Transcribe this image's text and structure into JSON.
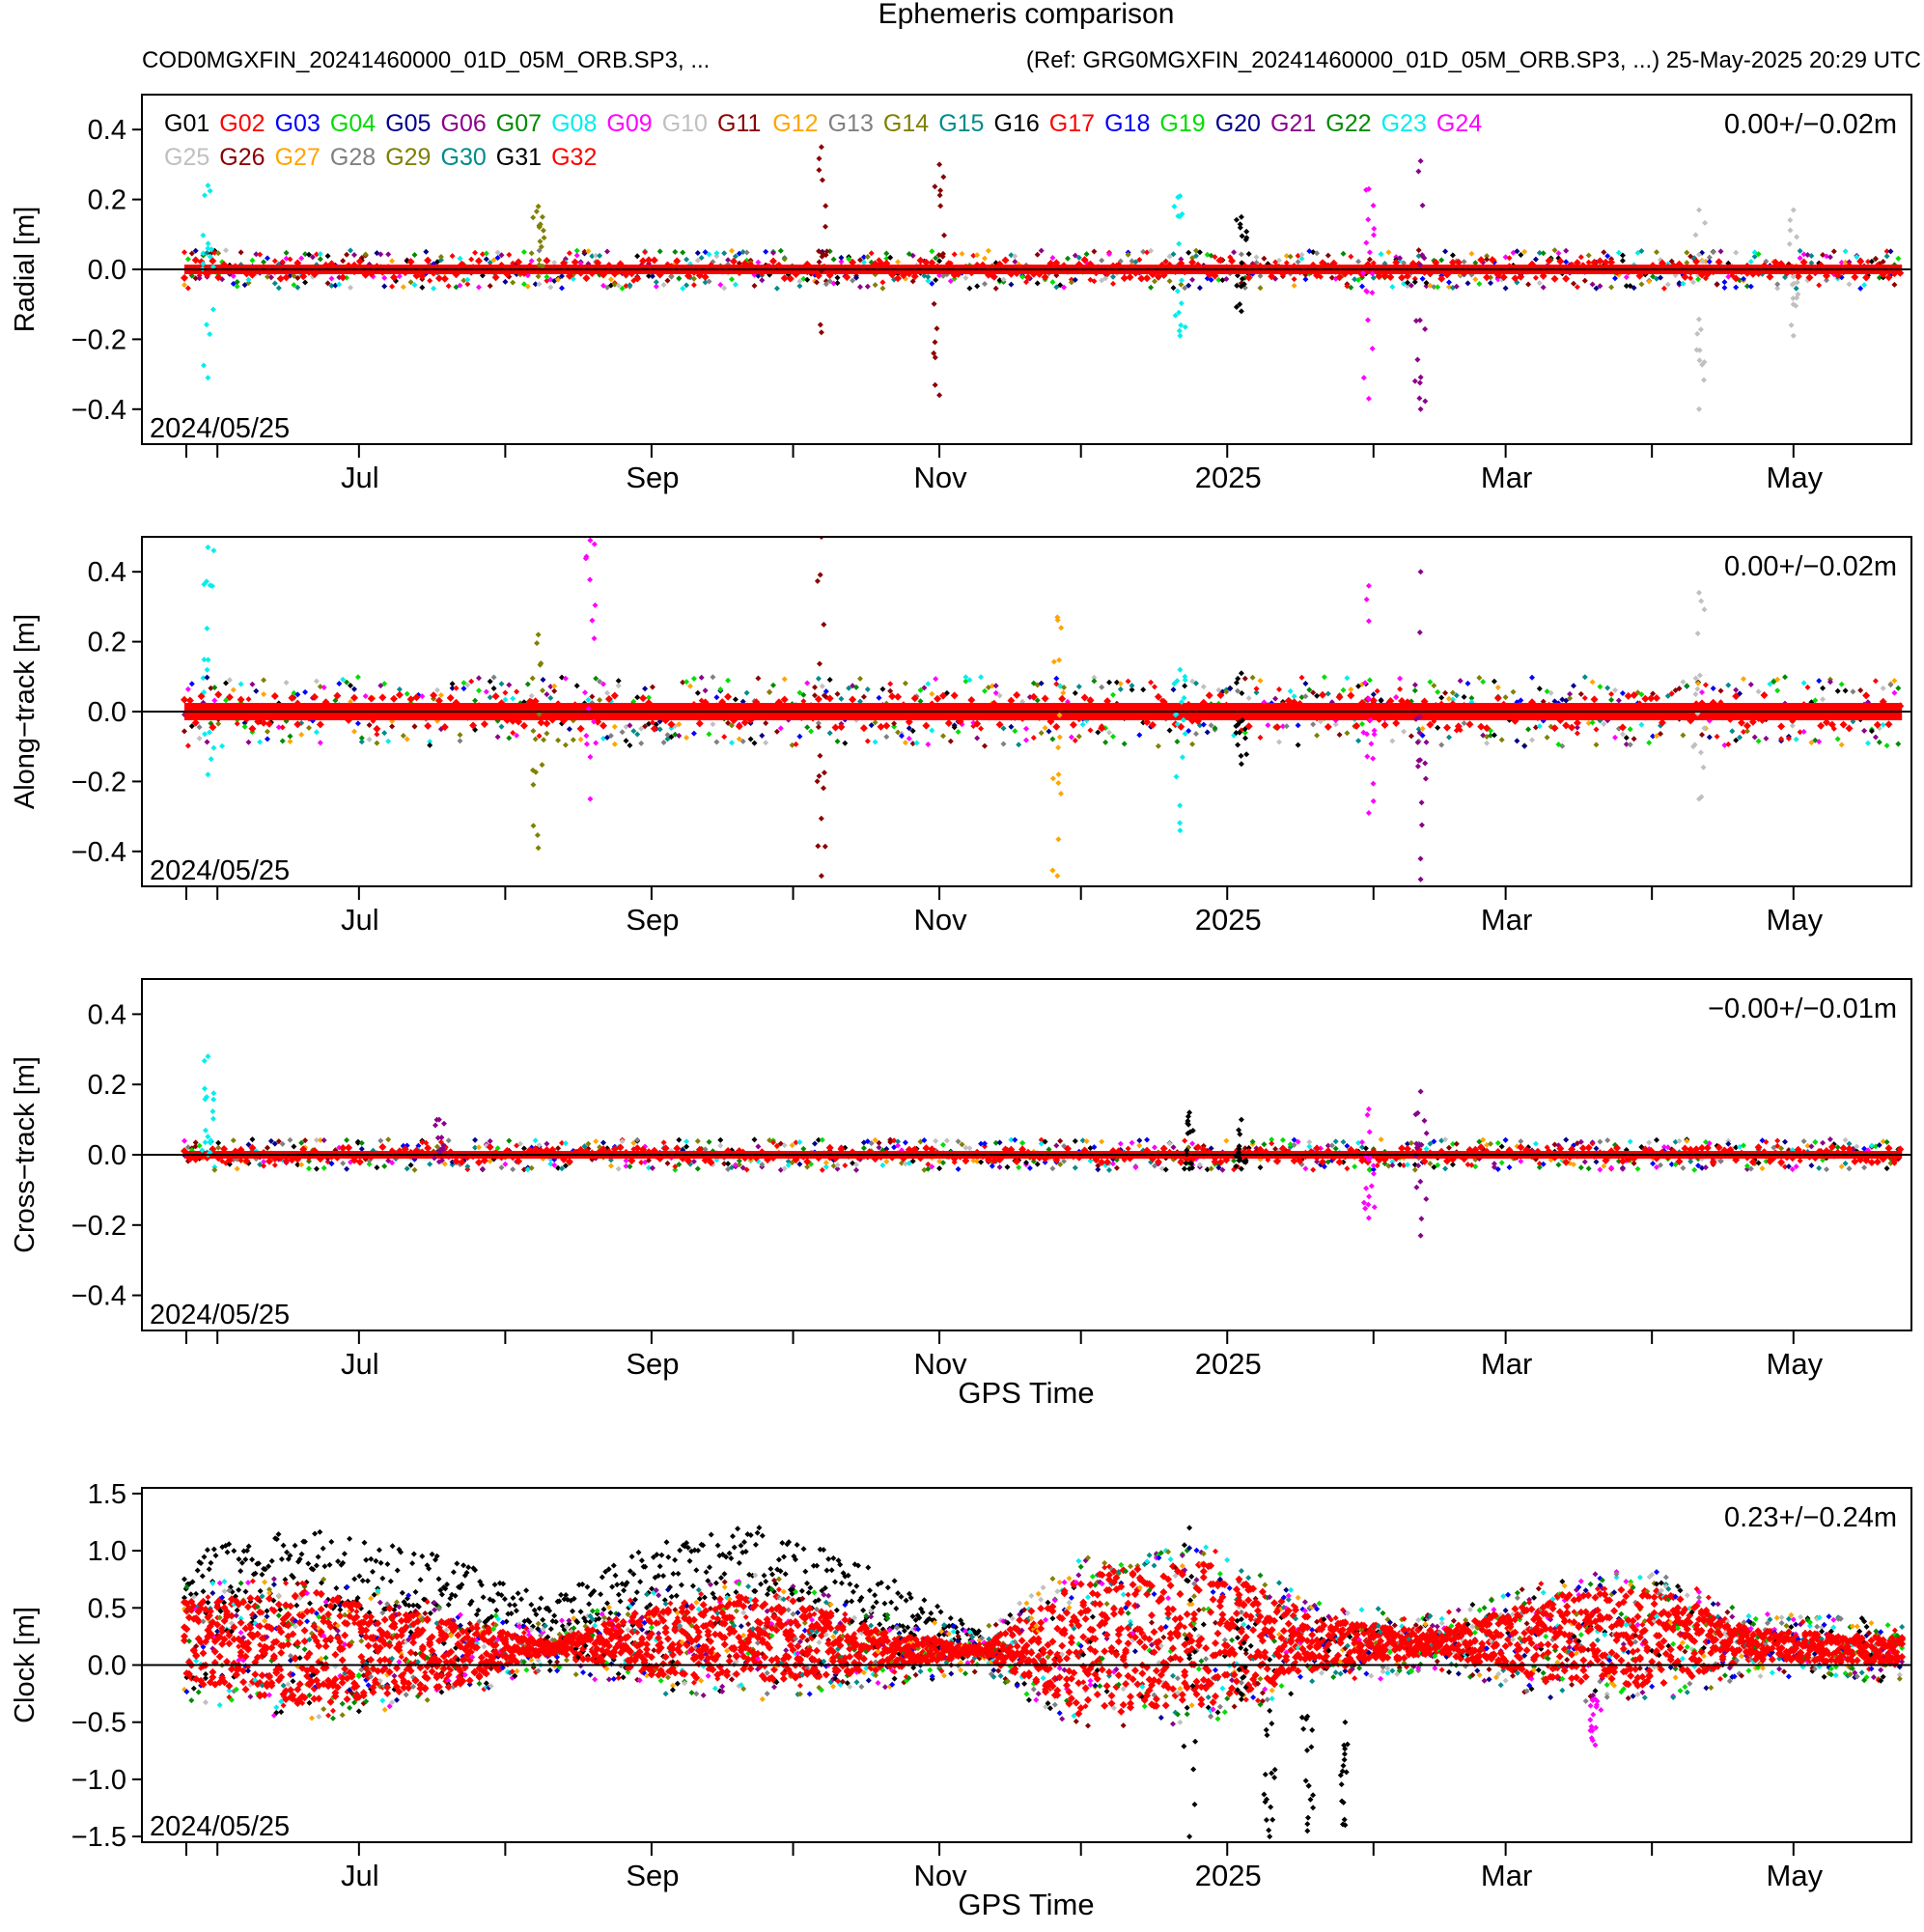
{
  "title": "Ephemeris comparison",
  "subtitle_left": "COD0MGXFIN_20241460000_01D_05M_ORB.SP3, ...",
  "subtitle_right": "(Ref: GRG0MGXFIN_20241460000_01D_05M_ORB.SP3, ...) 25-May-2025 20:29 UTC",
  "xlabel": "GPS Time",
  "month_labels": [
    "Jul",
    "Sep",
    "Nov",
    "2025",
    "Mar",
    "May"
  ],
  "legend": [
    {
      "name": "G01",
      "color": "#000000"
    },
    {
      "name": "G02",
      "color": "#ff0000"
    },
    {
      "name": "G03",
      "color": "#0000ff"
    },
    {
      "name": "G04",
      "color": "#00dd00"
    },
    {
      "name": "G05",
      "color": "#00008b"
    },
    {
      "name": "G06",
      "color": "#8b008b"
    },
    {
      "name": "G07",
      "color": "#008b00"
    },
    {
      "name": "G08",
      "color": "#00eeee"
    },
    {
      "name": "G09",
      "color": "#ff00ff"
    },
    {
      "name": "G10",
      "color": "#c0c0c0"
    },
    {
      "name": "G11",
      "color": "#8b0000"
    },
    {
      "name": "G12",
      "color": "#ffa500"
    },
    {
      "name": "G13",
      "color": "#808080"
    },
    {
      "name": "G14",
      "color": "#808000"
    },
    {
      "name": "G15",
      "color": "#008b8b"
    },
    {
      "name": "G16",
      "color": "#000000"
    },
    {
      "name": "G17",
      "color": "#ff0000"
    },
    {
      "name": "G18",
      "color": "#0000ff"
    },
    {
      "name": "G19",
      "color": "#00dd00"
    },
    {
      "name": "G20",
      "color": "#00008b"
    },
    {
      "name": "G21",
      "color": "#8b008b"
    },
    {
      "name": "G22",
      "color": "#008b00"
    },
    {
      "name": "G23",
      "color": "#00eeee"
    },
    {
      "name": "G24",
      "color": "#ff00ff"
    },
    {
      "name": "G25",
      "color": "#c0c0c0"
    },
    {
      "name": "G26",
      "color": "#8b0000"
    },
    {
      "name": "G27",
      "color": "#ffa500"
    },
    {
      "name": "G28",
      "color": "#808080"
    },
    {
      "name": "G29",
      "color": "#808000"
    },
    {
      "name": "G30",
      "color": "#008b8b"
    },
    {
      "name": "G31",
      "color": "#000000"
    },
    {
      "name": "G32",
      "color": "#ff0000"
    }
  ],
  "chart_data": [
    {
      "type": "scatter",
      "ylabel": "Radial [m]",
      "ylim": [
        -0.5,
        0.5
      ],
      "yticks": [
        "0.4",
        "0.2",
        "0.0",
        "−0.2",
        "−0.4"
      ],
      "stats": "0.00+/−0.02m",
      "start_label": "2024/05/25",
      "xlim": [
        "2024-05-25",
        "2025-05-25"
      ],
      "typical_spread": 0.025,
      "outliers": [
        {
          "date": "2024-05-30",
          "min": -0.31,
          "max": 0.24,
          "color": "#00eeee"
        },
        {
          "date": "2024-08-08",
          "min": -0.02,
          "max": 0.18,
          "color": "#808000"
        },
        {
          "date": "2024-10-07",
          "min": -0.18,
          "max": 0.35,
          "color": "#8b0000"
        },
        {
          "date": "2024-11-01",
          "min": -0.36,
          "max": 0.3,
          "color": "#8b0000"
        },
        {
          "date": "2024-12-22",
          "min": -0.19,
          "max": 0.21,
          "color": "#00eeee"
        },
        {
          "date": "2025-01-04",
          "min": -0.12,
          "max": 0.15,
          "color": "#000000"
        },
        {
          "date": "2025-01-31",
          "min": -0.37,
          "max": 0.23,
          "color": "#ff00ff"
        },
        {
          "date": "2025-02-11",
          "min": -0.4,
          "max": 0.31,
          "color": "#8b008b"
        },
        {
          "date": "2025-04-11",
          "min": -0.4,
          "max": 0.17,
          "color": "#c0c0c0"
        },
        {
          "date": "2025-05-01",
          "min": -0.19,
          "max": 0.17,
          "color": "#c0c0c0"
        }
      ]
    },
    {
      "type": "scatter",
      "ylabel": "Along−track [m]",
      "ylim": [
        -0.5,
        0.5
      ],
      "yticks": [
        "0.4",
        "0.2",
        "0.0",
        "−0.2",
        "−0.4"
      ],
      "stats": "0.00+/−0.02m",
      "start_label": "2024/05/25",
      "xlim": [
        "2024-05-25",
        "2025-05-25"
      ],
      "typical_spread": 0.045,
      "outliers": [
        {
          "date": "2024-05-30",
          "min": -0.18,
          "max": 0.47,
          "color": "#00eeee"
        },
        {
          "date": "2024-08-08",
          "min": -0.39,
          "max": 0.22,
          "color": "#808000"
        },
        {
          "date": "2024-08-19",
          "min": -0.25,
          "max": 0.49,
          "color": "#ff00ff"
        },
        {
          "date": "2024-10-07",
          "min": -0.47,
          "max": 0.5,
          "color": "#8b0000"
        },
        {
          "date": "2024-11-26",
          "min": -0.47,
          "max": 0.27,
          "color": "#ffa500"
        },
        {
          "date": "2024-12-22",
          "min": -0.34,
          "max": 0.12,
          "color": "#00eeee"
        },
        {
          "date": "2025-01-04",
          "min": -0.15,
          "max": 0.11,
          "color": "#000000"
        },
        {
          "date": "2025-01-31",
          "min": -0.29,
          "max": 0.36,
          "color": "#ff00ff"
        },
        {
          "date": "2025-02-11",
          "min": -0.48,
          "max": 0.4,
          "color": "#8b008b"
        },
        {
          "date": "2025-04-11",
          "min": -0.25,
          "max": 0.34,
          "color": "#c0c0c0"
        }
      ]
    },
    {
      "type": "scatter",
      "ylabel": "Cross−track [m]",
      "ylim": [
        -0.5,
        0.5
      ],
      "yticks": [
        "0.4",
        "0.2",
        "0.0",
        "−0.2",
        "−0.4"
      ],
      "stats": "−0.00+/−0.01m",
      "start_label": "2024/05/25",
      "xlim": [
        "2024-05-25",
        "2025-05-25"
      ],
      "xlabel": "GPS Time",
      "typical_spread": 0.02,
      "outliers": [
        {
          "date": "2024-05-30",
          "min": 0.0,
          "max": 0.28,
          "color": "#00eeee"
        },
        {
          "date": "2024-07-18",
          "min": -0.02,
          "max": 0.1,
          "color": "#8b008b"
        },
        {
          "date": "2024-12-24",
          "min": -0.04,
          "max": 0.12,
          "color": "#000000"
        },
        {
          "date": "2025-01-04",
          "min": -0.04,
          "max": 0.1,
          "color": "#000000"
        },
        {
          "date": "2025-01-31",
          "min": -0.18,
          "max": 0.13,
          "color": "#ff00ff"
        },
        {
          "date": "2025-02-11",
          "min": -0.23,
          "max": 0.18,
          "color": "#8b008b"
        }
      ]
    },
    {
      "type": "scatter",
      "ylabel": "Clock [m]",
      "ylim": [
        -1.55,
        1.55
      ],
      "yticks": [
        "1.5",
        "1.0",
        "0.5",
        "0.0",
        "−0.5",
        "−1.0",
        "−1.5"
      ],
      "stats": "0.23+/−0.24m",
      "start_label": "2024/05/25",
      "xlim": [
        "2024-05-25",
        "2025-05-25"
      ],
      "xlabel": "GPS Time",
      "band": [
        {
          "date": "2024-05-25",
          "lo": -0.3,
          "hi": 0.7
        },
        {
          "date": "2024-06-20",
          "lo": -0.5,
          "hi": 0.8
        },
        {
          "date": "2024-07-20",
          "lo": -0.35,
          "hi": 0.55
        },
        {
          "date": "2024-08-10",
          "lo": -0.05,
          "hi": 0.35
        },
        {
          "date": "2024-09-01",
          "lo": -0.25,
          "hi": 0.65
        },
        {
          "date": "2024-09-25",
          "lo": -0.3,
          "hi": 0.8
        },
        {
          "date": "2024-10-20",
          "lo": -0.2,
          "hi": 0.45
        },
        {
          "date": "2024-11-10",
          "lo": -0.05,
          "hi": 0.3
        },
        {
          "date": "2024-12-01",
          "lo": -0.6,
          "hi": 0.95
        },
        {
          "date": "2024-12-28",
          "lo": -0.5,
          "hi": 1.05
        },
        {
          "date": "2025-01-20",
          "lo": -0.2,
          "hi": 0.55
        },
        {
          "date": "2025-02-15",
          "lo": -0.05,
          "hi": 0.45
        },
        {
          "date": "2025-03-10",
          "lo": -0.3,
          "hi": 0.75
        },
        {
          "date": "2025-04-01",
          "lo": -0.35,
          "hi": 0.85
        },
        {
          "date": "2025-04-22",
          "lo": -0.1,
          "hi": 0.45
        },
        {
          "date": "2025-05-25",
          "lo": -0.15,
          "hi": 0.4
        }
      ],
      "black_series": [
        {
          "date": "2024-05-25",
          "lo": 0.4,
          "hi": 1.0
        },
        {
          "date": "2024-06-20",
          "lo": 0.5,
          "hi": 1.2
        },
        {
          "date": "2024-07-20",
          "lo": 0.4,
          "hi": 0.95
        },
        {
          "date": "2024-08-10",
          "lo": 0.3,
          "hi": 0.6
        },
        {
          "date": "2024-09-01",
          "lo": 0.5,
          "hi": 1.05
        },
        {
          "date": "2024-09-25",
          "lo": 0.6,
          "hi": 1.25
        },
        {
          "date": "2024-10-20",
          "lo": 0.3,
          "hi": 0.8
        },
        {
          "date": "2024-11-10",
          "lo": 0.1,
          "hi": 0.3
        }
      ],
      "outliers": [
        {
          "date": "2024-12-24",
          "min": -1.5,
          "max": 1.2,
          "color": "#000000"
        },
        {
          "date": "2025-01-04",
          "min": -0.3,
          "max": 0.4,
          "color": "#000000"
        },
        {
          "date": "2025-01-10",
          "min": -1.5,
          "max": -0.4,
          "color": "#000000"
        },
        {
          "date": "2025-01-18",
          "min": -1.45,
          "max": -0.45,
          "color": "#000000"
        },
        {
          "date": "2025-01-26",
          "min": -1.4,
          "max": -0.5,
          "color": "#000000"
        },
        {
          "date": "2025-03-20",
          "min": -0.7,
          "max": -0.3,
          "color": "#ff00ff"
        }
      ]
    }
  ]
}
